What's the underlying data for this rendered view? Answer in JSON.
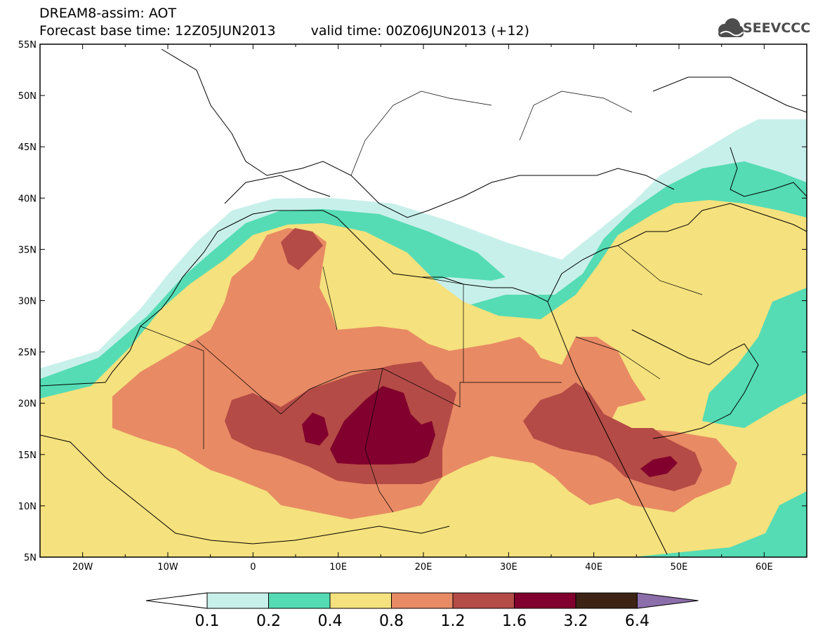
{
  "header": {
    "line1": "DREAM8-assim: AOT",
    "base_time": "Forecast base time: 12Z05JUN2013",
    "valid_time": "valid time: 00Z06JUN2013 (+12)",
    "logo_text": "SEEVCCC"
  },
  "map": {
    "lon_range": [
      -25,
      65
    ],
    "lat_range": [
      5,
      55
    ],
    "lat_labels": [
      "55N",
      "50N",
      "45N",
      "40N",
      "35N",
      "30N",
      "25N",
      "20N",
      "15N",
      "10N",
      "5N"
    ],
    "lat_values": [
      55,
      50,
      45,
      40,
      35,
      30,
      25,
      20,
      15,
      10,
      5
    ],
    "lon_labels": [
      "20W",
      "10W",
      "0",
      "10E",
      "20E",
      "30E",
      "40E",
      "50E",
      "60E"
    ],
    "lon_values": [
      -20,
      -10,
      0,
      10,
      20,
      30,
      40,
      50,
      60
    ]
  },
  "colorbar": {
    "levels": [
      "0.1",
      "0.2",
      "0.4",
      "0.8",
      "1.2",
      "1.6",
      "3.2",
      "6.4"
    ],
    "colors": [
      "#ffffff",
      "#c8f0ea",
      "#55dcb4",
      "#f5e17d",
      "#e88a64",
      "#b44b46",
      "#82002d",
      "#3c2314",
      "#8c6eaa"
    ]
  },
  "icons": {
    "logo": "cloud-logo-icon"
  }
}
